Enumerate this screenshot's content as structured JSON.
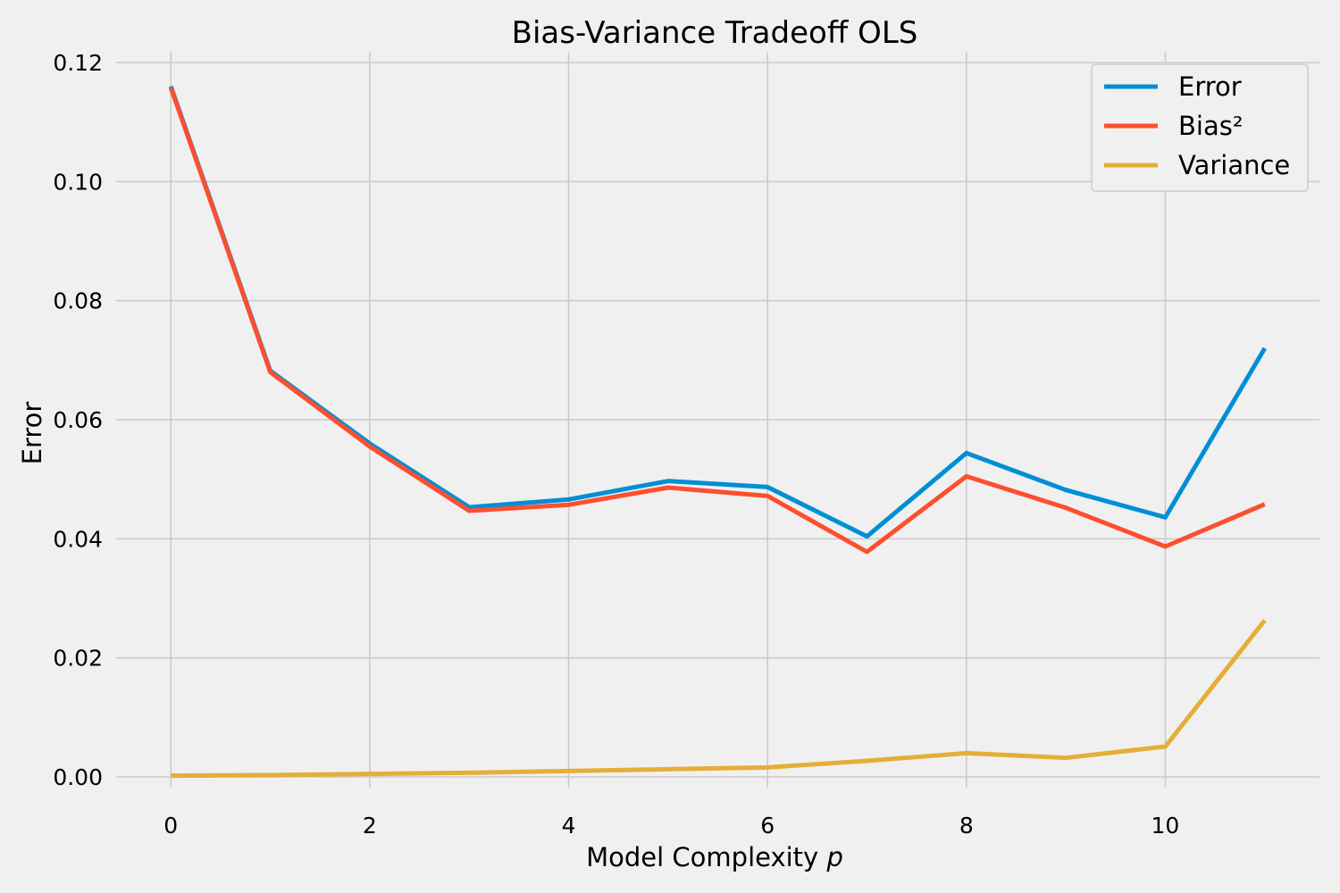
{
  "chart_data": {
    "type": "line",
    "title": "Bias-Variance Tradeoff OLS",
    "xlabel": "Model Complexity",
    "xlabel_var": "p",
    "ylabel": "Error",
    "xlim": [
      -0.55,
      11.55
    ],
    "ylim": [
      -0.0018,
      0.1218
    ],
    "xticks": [
      0,
      2,
      4,
      6,
      8,
      10
    ],
    "xtick_labels": [
      "0",
      "2",
      "4",
      "6",
      "8",
      "10"
    ],
    "yticks": [
      0.0,
      0.02,
      0.04,
      0.06,
      0.08,
      0.1,
      0.12
    ],
    "ytick_labels": [
      "0.00",
      "0.02",
      "0.04",
      "0.06",
      "0.08",
      "0.10",
      "0.12"
    ],
    "grid": true,
    "legend_position": "top-right",
    "x": [
      0,
      1,
      2,
      3,
      4,
      5,
      6,
      7,
      8,
      9,
      10,
      11
    ],
    "series": [
      {
        "name": "Error",
        "color": "#008fd5",
        "values": [
          0.116,
          0.0682,
          0.056,
          0.0453,
          0.0466,
          0.0497,
          0.0487,
          0.0404,
          0.0544,
          0.0482,
          0.0436,
          0.072
        ]
      },
      {
        "name": "Bias²",
        "color": "#fc4f30",
        "values": [
          0.1158,
          0.068,
          0.0555,
          0.0447,
          0.0457,
          0.0486,
          0.0472,
          0.0378,
          0.0505,
          0.0452,
          0.0387,
          0.0458
        ]
      },
      {
        "name": "Variance",
        "color": "#e5ae38",
        "values": [
          0.0002,
          0.0003,
          0.0005,
          0.0007,
          0.001,
          0.0013,
          0.0016,
          0.0027,
          0.004,
          0.0032,
          0.0051,
          0.0263
        ]
      }
    ]
  }
}
